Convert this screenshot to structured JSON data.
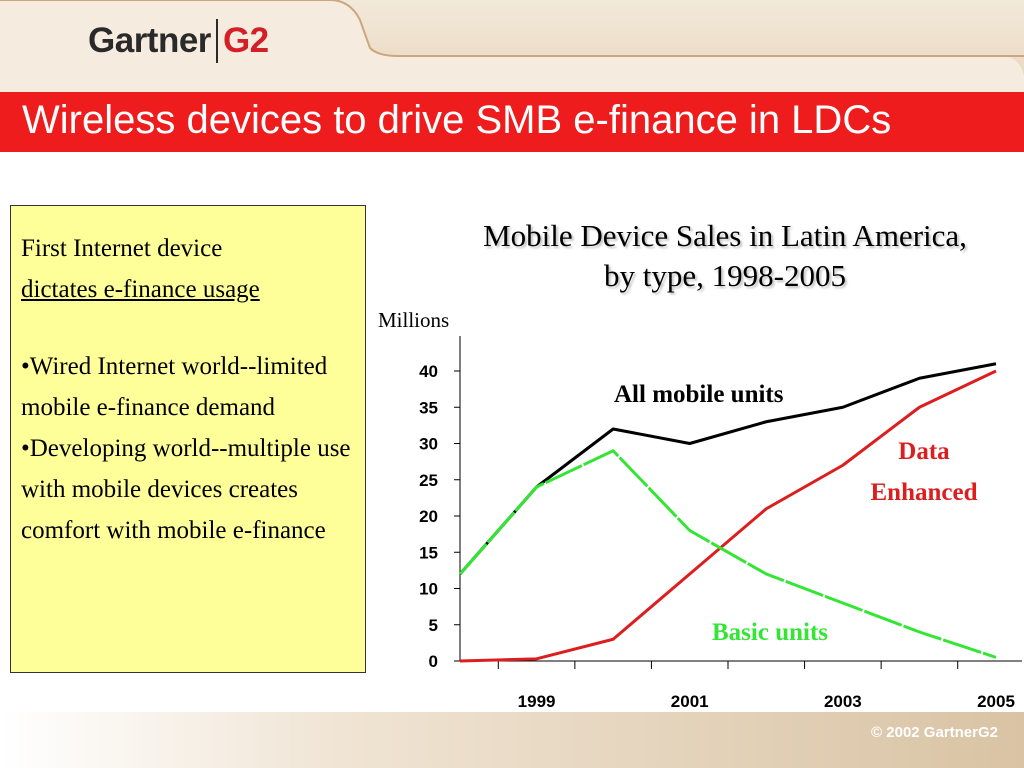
{
  "header": {
    "logo_word": "Gartner",
    "logo_g": "G",
    "logo_two": "2"
  },
  "slide": {
    "title": "Wireless devices to drive SMB e-finance in LDCs",
    "copyright": "© 2002 GartnerG2"
  },
  "note_box": {
    "line1": "First Internet device",
    "line2": "dictates e-finance usage",
    "bullet1": "•Wired Internet world--limited mobile e-finance demand",
    "bullet2": "•Developing world--multiple use with mobile devices creates comfort with mobile e-finance"
  },
  "colors": {
    "title_bar": "#ee1c1c",
    "note_box": "#ffff99",
    "all_mobile": "#000000",
    "data_enhanced": "#dd1e1e",
    "basic": "#33e633"
  },
  "chart_data": {
    "type": "line",
    "title": "Mobile Device Sales in Latin America, by type, 1998-2005",
    "ylabel": "Millions",
    "xlabel": "",
    "x": [
      1998,
      1999,
      2000,
      2001,
      2002,
      2003,
      2004,
      2005
    ],
    "x_tick_labels": [
      "1999",
      "2001",
      "2003",
      "2005"
    ],
    "ylim": [
      0,
      45
    ],
    "yticks": [
      0,
      5,
      10,
      15,
      20,
      25,
      30,
      35,
      40
    ],
    "grid": false,
    "series": [
      {
        "name": "All mobile units",
        "color": "#000000",
        "values": [
          12,
          24,
          32,
          30,
          33,
          35,
          39,
          41
        ]
      },
      {
        "name": "Data Enhanced",
        "color": "#dd1e1e",
        "values": [
          0,
          0.3,
          3,
          12,
          21,
          27,
          35,
          40
        ]
      },
      {
        "name": "Basic units",
        "color": "#33e633",
        "values": [
          12,
          24,
          29,
          18,
          12,
          8,
          4,
          0.5
        ]
      }
    ]
  }
}
